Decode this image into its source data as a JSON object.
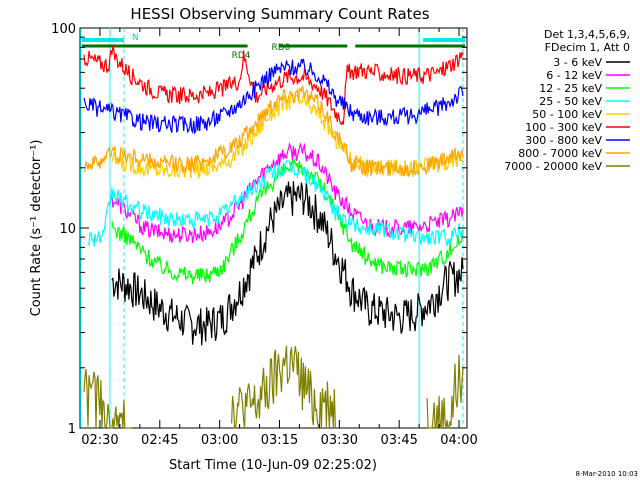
{
  "chart_data": {
    "type": "line",
    "title": "HESSI Observing Summary Count Rates",
    "xlabel": "Start Time (10-Jun-09 02:25:02)",
    "ylabel": "Count Rate (s⁻¹ detector⁻¹)",
    "yscale": "log",
    "ylim": [
      1,
      100
    ],
    "xlim_minutes": [
      0,
      97
    ],
    "x_ticks": [
      {
        "t": 5,
        "label": "02:30"
      },
      {
        "t": 20,
        "label": "02:45"
      },
      {
        "t": 35,
        "label": "03:00"
      },
      {
        "t": 50,
        "label": "03:15"
      },
      {
        "t": 65,
        "label": "03:30"
      },
      {
        "t": 80,
        "label": "03:45"
      },
      {
        "t": 95,
        "label": "04:00"
      }
    ],
    "y_ticks": [
      {
        "v": 1,
        "label": "1"
      },
      {
        "v": 10,
        "label": "10"
      },
      {
        "v": 100,
        "label": "100"
      }
    ],
    "legend": {
      "placement": "right",
      "header": [
        "Det 1,3,4,5,6,9,",
        "FDecim 1, Att 0"
      ]
    },
    "series": [
      {
        "name": "3 - 6 keV",
        "color": "#000000",
        "x": [
          8,
          12,
          16,
          20,
          24,
          28,
          32,
          36,
          40,
          44,
          48,
          52,
          56,
          60,
          64,
          68,
          72,
          76,
          80,
          84,
          88,
          92,
          96
        ],
        "y": [
          5.5,
          5.2,
          4.6,
          4.0,
          3.6,
          3.3,
          3.3,
          3.6,
          4.8,
          7.0,
          11.0,
          14.0,
          14.5,
          11.5,
          7.5,
          5.0,
          4.0,
          3.8,
          3.6,
          3.8,
          4.3,
          5.5,
          6.0
        ]
      },
      {
        "name": "6 - 12 keV",
        "color": "#ff00ff",
        "x": [
          8,
          12,
          16,
          20,
          24,
          28,
          32,
          36,
          40,
          44,
          48,
          52,
          56,
          60,
          64,
          68,
          72,
          76,
          80,
          84,
          88,
          92,
          96
        ],
        "y": [
          14,
          12,
          10,
          9.5,
          9.3,
          9.3,
          9.5,
          10.5,
          13,
          17,
          21,
          24,
          24,
          21,
          15,
          12,
          10.5,
          10,
          10,
          10,
          10.5,
          11,
          12
        ]
      },
      {
        "name": "12 - 25 keV",
        "color": "#00ff00",
        "x": [
          8,
          12,
          16,
          20,
          24,
          28,
          32,
          36,
          40,
          44,
          48,
          52,
          56,
          60,
          64,
          68,
          72,
          76,
          80,
          84,
          88,
          92,
          96
        ],
        "y": [
          10,
          9,
          7.5,
          6.5,
          6,
          5.8,
          5.8,
          6.5,
          9,
          13,
          17,
          20,
          20,
          17,
          12,
          8.5,
          7,
          6.5,
          6.2,
          6.2,
          6.5,
          7.5,
          9
        ]
      },
      {
        "name": "25 - 50 keV",
        "color": "#00ffff",
        "x": [
          2,
          6,
          8,
          12,
          16,
          20,
          24,
          28,
          32,
          36,
          40,
          44,
          48,
          52,
          56,
          60,
          64,
          68,
          72,
          76,
          80,
          84,
          88,
          92,
          96
        ],
        "y": [
          9,
          9,
          15,
          13,
          12,
          11.5,
          11,
          11,
          11,
          12,
          14,
          16,
          19,
          20,
          19,
          16,
          12,
          10.5,
          10,
          10,
          9.5,
          9,
          9,
          9,
          10
        ]
      },
      {
        "name": "50 - 100 keV",
        "color": "#ffcc00",
        "x": [
          8,
          12,
          16,
          20,
          24,
          28,
          32,
          36,
          40,
          44,
          48,
          52,
          56,
          60,
          64,
          68,
          72,
          76,
          80,
          84,
          88,
          92,
          96
        ],
        "y": [
          22,
          21,
          20,
          19.5,
          19.5,
          19.5,
          20,
          21,
          24,
          30,
          38,
          43,
          43,
          37,
          28,
          22,
          20,
          20,
          20,
          20,
          21,
          21,
          23
        ]
      },
      {
        "name": "100 - 300 keV",
        "color": "#ff0000",
        "x": [
          1,
          4,
          7,
          8,
          12,
          16,
          20,
          24,
          28,
          32,
          36,
          40,
          41,
          44,
          48,
          52,
          56,
          60,
          64,
          66,
          67,
          70,
          74,
          78,
          82,
          86,
          90,
          94,
          96
        ],
        "y": [
          72,
          68,
          65,
          75,
          60,
          52,
          47,
          46,
          46,
          47,
          50,
          55,
          72,
          45,
          52,
          57,
          57,
          50,
          38,
          35,
          60,
          62,
          60,
          58,
          58,
          58,
          60,
          68,
          75
        ]
      },
      {
        "name": "300 - 800 keV",
        "color": "#0000ff",
        "x": [
          1,
          4,
          8,
          12,
          16,
          20,
          24,
          28,
          32,
          36,
          40,
          44,
          48,
          52,
          56,
          60,
          64,
          68,
          72,
          76,
          80,
          84,
          88,
          92,
          96
        ],
        "y": [
          42,
          40,
          38,
          36,
          34,
          33,
          33,
          33,
          34,
          37,
          42,
          50,
          60,
          64,
          64,
          58,
          45,
          38,
          36,
          36,
          36,
          37,
          39,
          42,
          48
        ]
      },
      {
        "name": "800 - 7000 keV",
        "color": "#ffa500",
        "x": [
          1,
          4,
          8,
          12,
          16,
          20,
          24,
          28,
          32,
          36,
          40,
          44,
          48,
          52,
          56,
          60,
          64,
          68,
          72,
          76,
          80,
          84,
          88,
          92,
          96
        ],
        "y": [
          21,
          21,
          24,
          23,
          22,
          21,
          21,
          21,
          22,
          24,
          27,
          33,
          42,
          47,
          47,
          42,
          30,
          21,
          20,
          20,
          20,
          20,
          21,
          22,
          24
        ]
      },
      {
        "name": "7000 - 20000 keV",
        "color": "#808000",
        "x": [
          1,
          2,
          3,
          4,
          5,
          6,
          7,
          44,
          46,
          48,
          50,
          52,
          54,
          56,
          58,
          93,
          94,
          95,
          96
        ],
        "y": [
          1.8,
          1.4,
          1.8,
          1.2,
          1.6,
          1.1,
          1.0,
          1.3,
          1.5,
          1.7,
          2.0,
          2.2,
          2.0,
          1.7,
          1.4,
          1.1,
          1.6,
          1.8,
          1.5
        ]
      }
    ],
    "annotations": {
      "top_labels": [
        {
          "text": "N",
          "t": 13
        },
        {
          "text": "RD0",
          "t": 48
        },
        {
          "text": "RD4",
          "t": 38
        }
      ],
      "night_bars": [
        [
          0.5,
          11
        ],
        [
          86,
          96.5
        ]
      ],
      "rd0_bars": [
        [
          0.5,
          42
        ],
        [
          50,
          67
        ],
        [
          69,
          96.5
        ]
      ],
      "vertical_lines_solid": [
        0.2,
        7.5,
        85
      ],
      "vertical_lines_dashed": [
        11,
        96
      ]
    },
    "grid": false
  },
  "footer": {
    "date": "8-Mar-2010 10:03"
  }
}
